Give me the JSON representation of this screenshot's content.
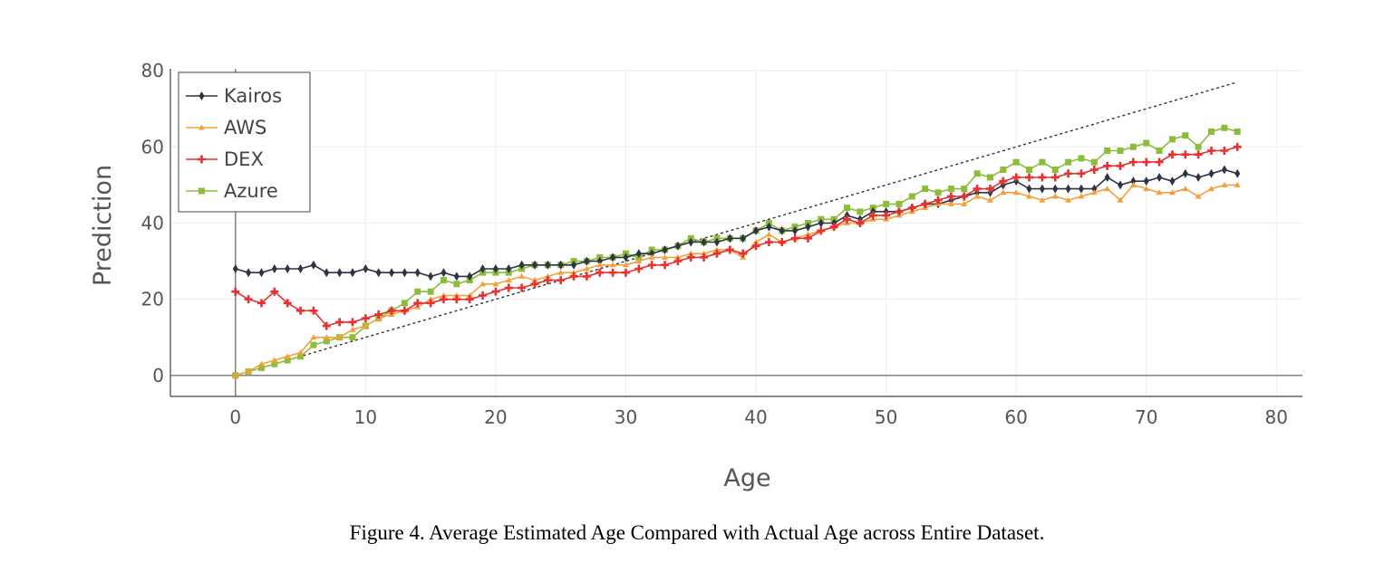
{
  "caption": "Figure 4. Average Estimated Age Compared with Actual Age across Entire Dataset.",
  "colors": {
    "Kairos": "#2e3345",
    "AWS": "#f5a13a",
    "DEX": "#e8302e",
    "Azure": "#8bbd3a",
    "reference": "#333333"
  },
  "chart_data": {
    "type": "line",
    "title": "",
    "xlabel": "Age",
    "ylabel": "Prediction",
    "xlim": [
      -5,
      82
    ],
    "ylim": [
      -5.5,
      80.5
    ],
    "xticks": [
      0,
      10,
      20,
      30,
      40,
      50,
      60,
      70,
      80
    ],
    "yticks": [
      0,
      20,
      40,
      60,
      80
    ],
    "grid": true,
    "legend_position": "top-left",
    "reference_line": {
      "style": "dotted",
      "x": [
        4,
        77
      ],
      "y": [
        4,
        77
      ]
    },
    "x": [
      0,
      1,
      2,
      3,
      4,
      5,
      6,
      7,
      8,
      9,
      10,
      11,
      12,
      13,
      14,
      15,
      16,
      17,
      18,
      19,
      20,
      21,
      22,
      23,
      24,
      25,
      26,
      27,
      28,
      29,
      30,
      31,
      32,
      33,
      34,
      35,
      36,
      37,
      38,
      39,
      40,
      41,
      42,
      43,
      44,
      45,
      46,
      47,
      48,
      49,
      50,
      51,
      52,
      53,
      54,
      55,
      56,
      57,
      58,
      59,
      60,
      61,
      62,
      63,
      64,
      65,
      66,
      67,
      68,
      69,
      70,
      71,
      72,
      73,
      74,
      75,
      76,
      77
    ],
    "series": [
      {
        "name": "Kairos",
        "marker": "diamond",
        "values": [
          28,
          27,
          27,
          28,
          28,
          28,
          29,
          27,
          27,
          27,
          28,
          27,
          27,
          27,
          27,
          26,
          27,
          26,
          26,
          28,
          28,
          28,
          29,
          29,
          29,
          29,
          29,
          30,
          30,
          31,
          31,
          32,
          32,
          33,
          34,
          35,
          35,
          35,
          36,
          36,
          38,
          39,
          38,
          38,
          39,
          40,
          40,
          42,
          41,
          43,
          43,
          43,
          44,
          45,
          45,
          46,
          47,
          48,
          48,
          50,
          51,
          49,
          49,
          49,
          49,
          49,
          49,
          52,
          50,
          51,
          51,
          52,
          51,
          53,
          52,
          53,
          54,
          53
        ]
      },
      {
        "name": "AWS",
        "marker": "triangle",
        "values": [
          0,
          1,
          3,
          4,
          5,
          6,
          10,
          10,
          10,
          12,
          13,
          15,
          16,
          17,
          18,
          20,
          21,
          21,
          21,
          24,
          24,
          25,
          26,
          25,
          26,
          27,
          27,
          28,
          29,
          29,
          29,
          30,
          31,
          31,
          31,
          32,
          32,
          33,
          33,
          31,
          35,
          37,
          35,
          36,
          37,
          38,
          39,
          40,
          40,
          41,
          41,
          42,
          43,
          44,
          45,
          45,
          45,
          47,
          46,
          48,
          48,
          47,
          46,
          47,
          46,
          47,
          48,
          49,
          46,
          50,
          49,
          48,
          48,
          49,
          47,
          49,
          50,
          50
        ]
      },
      {
        "name": "DEX",
        "marker": "cross",
        "values": [
          22,
          20,
          19,
          22,
          19,
          17,
          17,
          13,
          14,
          14,
          15,
          16,
          17,
          17,
          19,
          19,
          20,
          20,
          20,
          21,
          22,
          23,
          23,
          24,
          25,
          25,
          26,
          26,
          27,
          27,
          27,
          28,
          29,
          29,
          30,
          31,
          31,
          32,
          33,
          32,
          34,
          35,
          35,
          36,
          36,
          38,
          39,
          41,
          40,
          42,
          42,
          43,
          44,
          45,
          46,
          47,
          47,
          49,
          49,
          51,
          52,
          52,
          52,
          52,
          53,
          53,
          54,
          55,
          55,
          56,
          56,
          56,
          58,
          58,
          58,
          59,
          59,
          60
        ]
      },
      {
        "name": "Azure",
        "marker": "square",
        "values": [
          0,
          1,
          2,
          3,
          4,
          5,
          8,
          9,
          10,
          10,
          13,
          15,
          17,
          19,
          22,
          22,
          25,
          24,
          25,
          27,
          27,
          27,
          28,
          29,
          29,
          29,
          30,
          30,
          31,
          31,
          32,
          31,
          33,
          33,
          34,
          36,
          35,
          36,
          36,
          36,
          38,
          40,
          38,
          39,
          40,
          41,
          41,
          44,
          43,
          44,
          45,
          45,
          47,
          49,
          48,
          49,
          49,
          53,
          52,
          54,
          56,
          54,
          56,
          54,
          56,
          57,
          56,
          59,
          59,
          60,
          61,
          59,
          62,
          63,
          60,
          64,
          65,
          64
        ]
      }
    ]
  }
}
